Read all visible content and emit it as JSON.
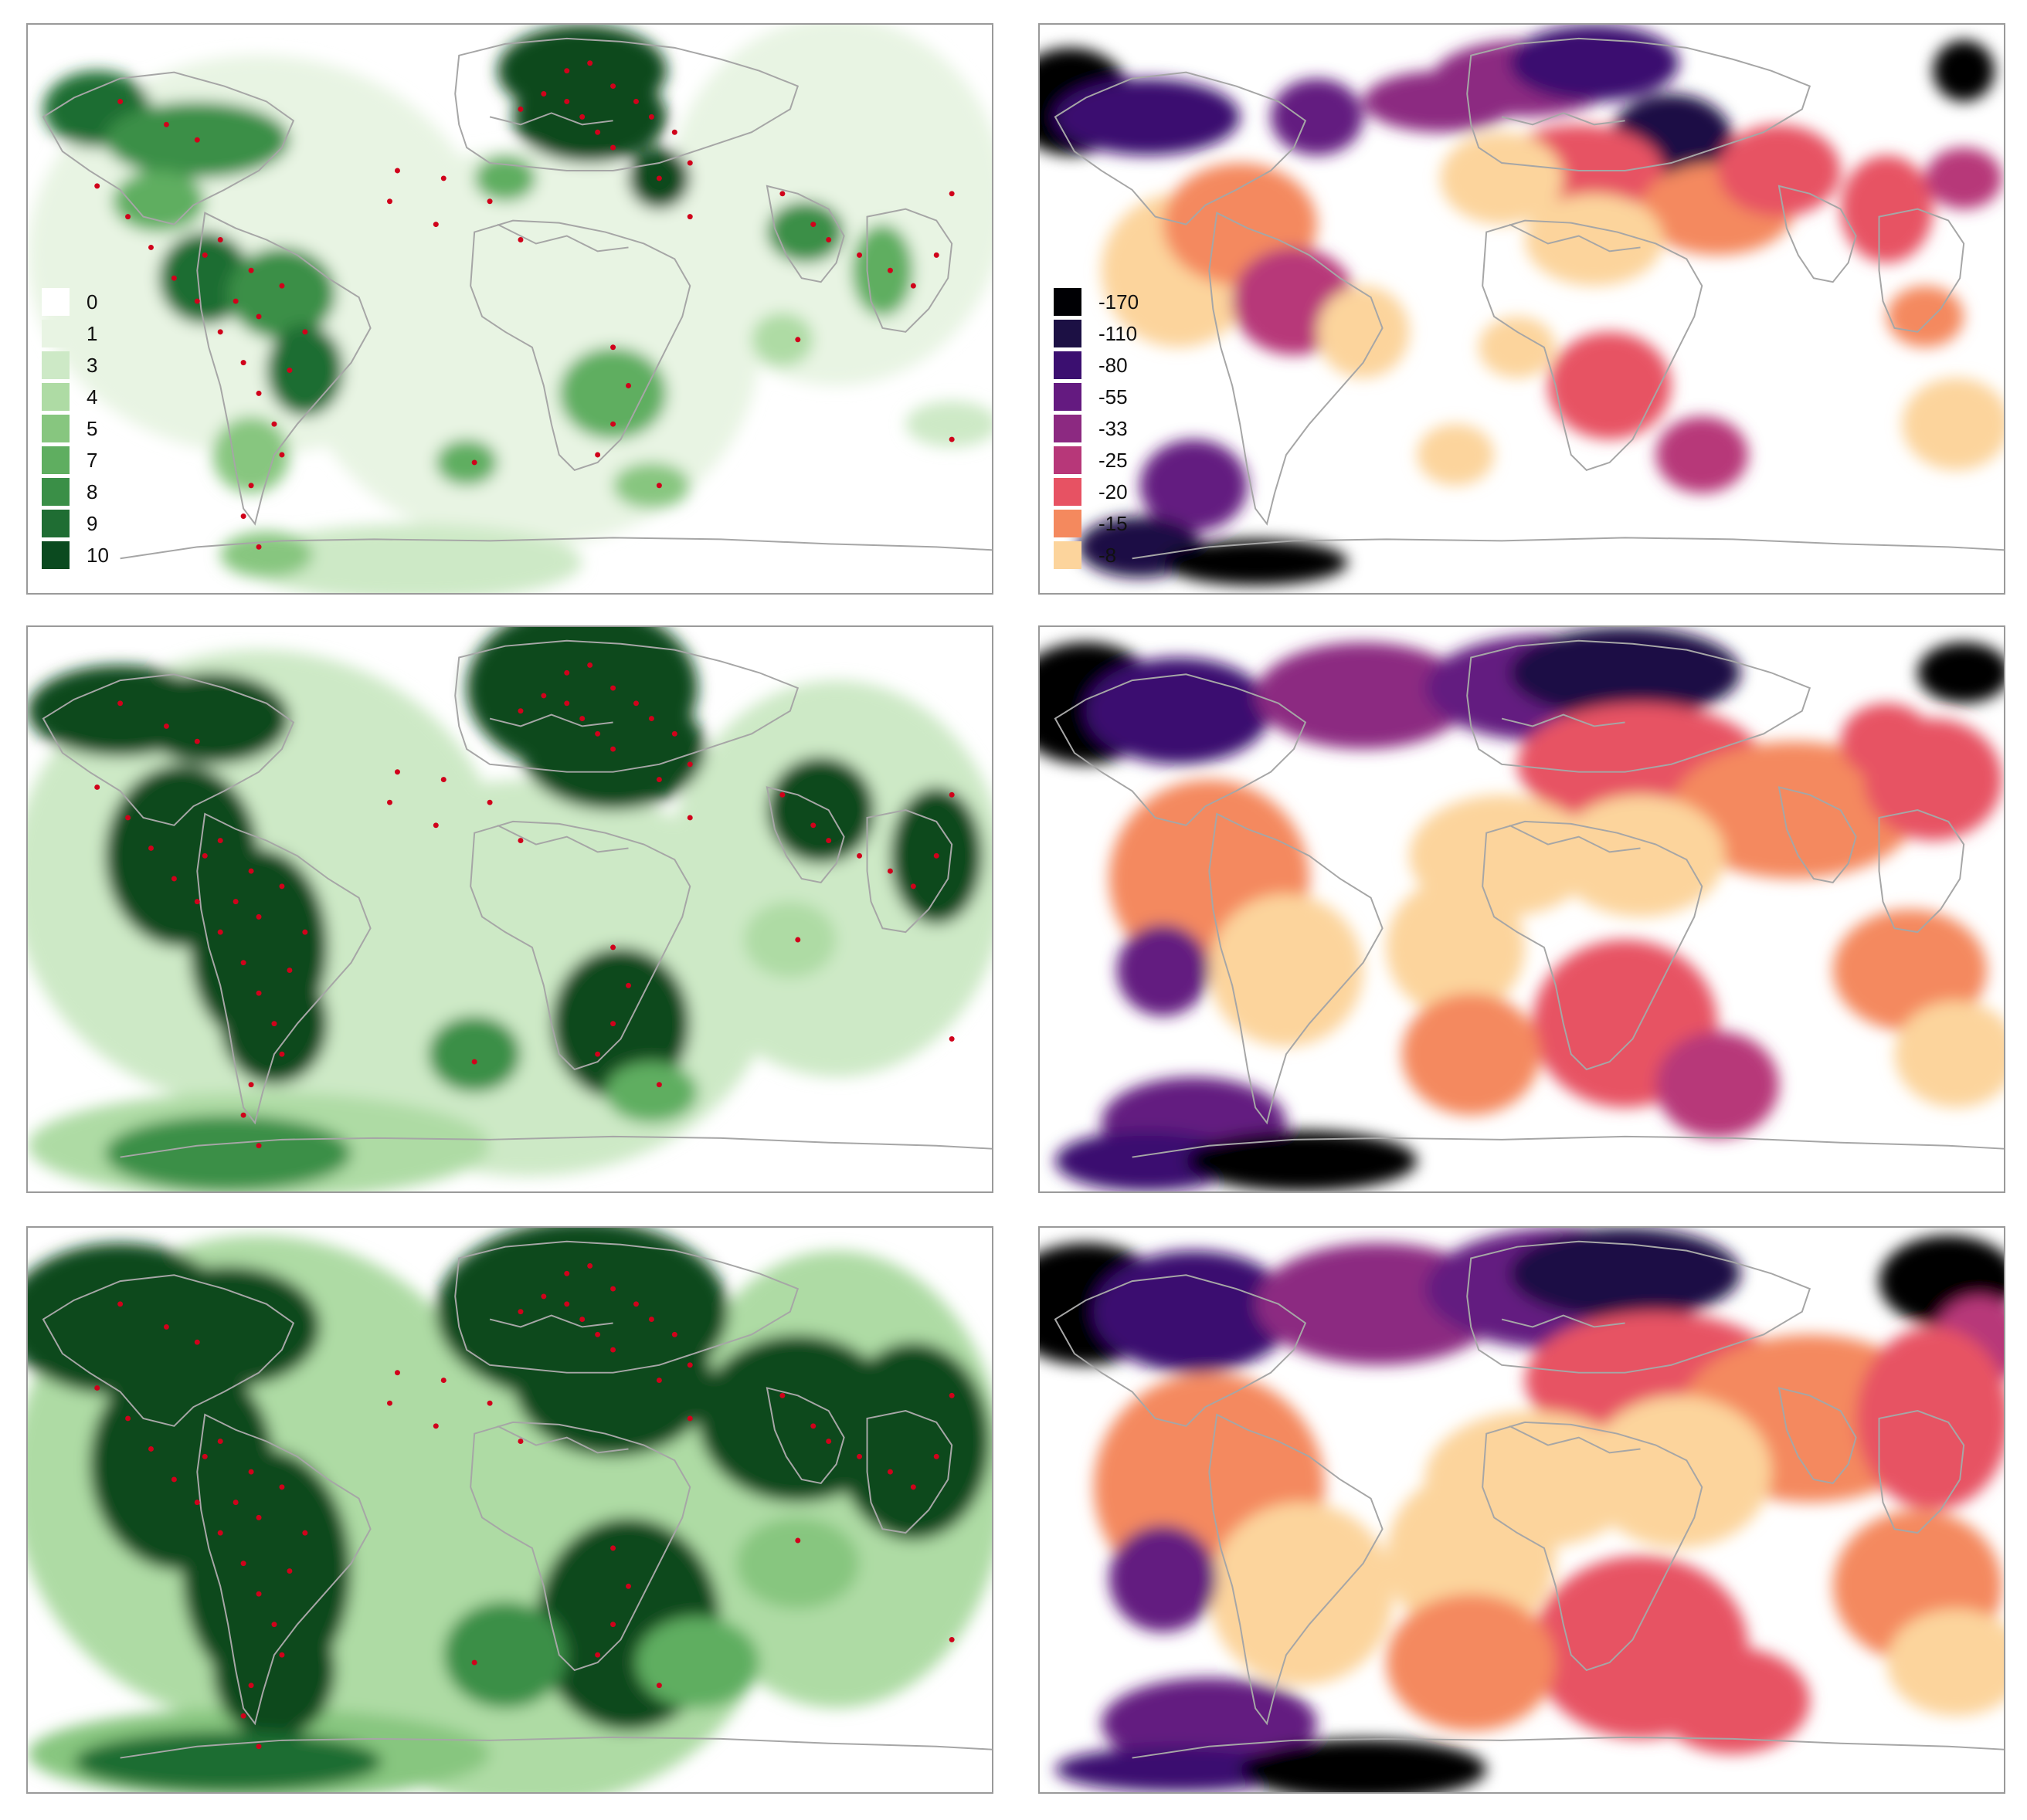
{
  "coverage_legend": {
    "labels": [
      "0",
      "1",
      "3",
      "4",
      "5",
      "7",
      "8",
      "9",
      "10"
    ],
    "colors": [
      "#ffffff",
      "#e8f4e3",
      "#cde9c6",
      "#aedba4",
      "#87c67f",
      "#5fae60",
      "#3a8f47",
      "#1f6d33",
      "#0b4a1f"
    ]
  },
  "bias_legend": {
    "labels": [
      "-170",
      "-110",
      "-80",
      "-55",
      "-33",
      "-25",
      "-20",
      "-15",
      "-8"
    ],
    "colors": [
      "#000004",
      "#1c1044",
      "#3b0f70",
      "#641a80",
      "#8c2981",
      "#b73779",
      "#e75263",
      "#f4895e",
      "#fcd49c"
    ]
  },
  "colors": {
    "station_marker": "#d0021b",
    "border_line": "#a6a6a6",
    "panel_border": "#9a9a9a",
    "low_bias_highlight": "#fdf6b4"
  },
  "panels": [
    {
      "id": "coverage-row-1",
      "scheme": "coverage",
      "legend": true
    },
    {
      "id": "bias-row-1",
      "scheme": "bias",
      "legend": true
    },
    {
      "id": "coverage-row-2",
      "scheme": "coverage",
      "legend": false
    },
    {
      "id": "bias-row-2",
      "scheme": "bias",
      "legend": false
    },
    {
      "id": "coverage-row-3",
      "scheme": "coverage",
      "legend": false
    },
    {
      "id": "bias-row-3",
      "scheme": "bias",
      "legend": false
    }
  ]
}
